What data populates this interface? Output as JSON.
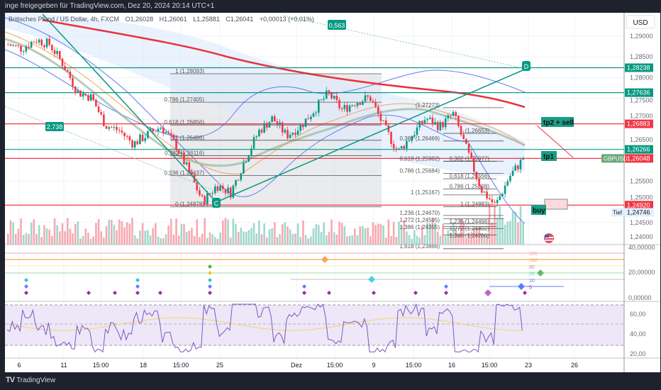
{
  "header": {
    "shared_by": "inge freigegeben für TradingView.com, Dez 20, 2024 20:14 UTC+1"
  },
  "legend": {
    "symbol": "Britisches Pfund / US Dollar, 4h, FXCM",
    "open": "O1,26028",
    "high": "H1,26061",
    "low": "L1,25881",
    "close": "C1,26041",
    "change": "+0,00013 (+0,01%)"
  },
  "price_axis": {
    "currency": "USD",
    "ticks": [
      "1,29000",
      "1,28500",
      "1,28000",
      "1,27500",
      "1,27000",
      "1,26500",
      "1,25500",
      "1,25000",
      "1,24500",
      "1,24000"
    ],
    "tick_values": [
      1.29,
      1.285,
      1.28,
      1.275,
      1.27,
      1.265,
      1.255,
      1.25,
      1.245,
      1.24
    ],
    "tags": [
      {
        "label": "1,28238",
        "value": 1.28238,
        "color": "#089981"
      },
      {
        "label": "1,27636",
        "value": 1.27636,
        "color": "#089981"
      },
      {
        "label": "1,26883",
        "value": 1.26883,
        "color": "#f23645"
      },
      {
        "label": "1,26266",
        "value": 1.26266,
        "color": "#089981"
      },
      {
        "label": "1,26048",
        "value": 1.26048,
        "color": "#f23645"
      },
      {
        "label": "1,24920",
        "value": 1.2492,
        "color": "#f23645"
      }
    ],
    "low_label": "Tief",
    "low_value": "1,24746",
    "symbol_tag": "GBPUSD"
  },
  "indicator_axis": {
    "ticks": [
      "40,00000",
      "20,00000",
      "0,00000"
    ],
    "levels": [
      "320",
      "160",
      "80",
      "20",
      "10",
      "5"
    ]
  },
  "rsi_axis": {
    "ticks": [
      "60,00",
      "40,00",
      "20,00"
    ]
  },
  "time_axis": {
    "labels": [
      "6",
      "11",
      "15:00",
      "18",
      "15:00",
      "25",
      "Dez",
      "15:00",
      "9",
      "15:00",
      "16",
      "15:00",
      "23",
      "26"
    ]
  },
  "annotations": {
    "wave_ratio_1": "2,738",
    "wave_ratio_2": "0,563",
    "point_d": "D",
    "point_c": "C",
    "tp2": "tp2 + sell",
    "tp1": "tp1",
    "buy": "buy"
  },
  "fib_left": [
    {
      "label": "1 (1,28093)",
      "value": 1.28093
    },
    {
      "label": "0,786 (1,27405)",
      "value": 1.27405
    },
    {
      "label": "0,618 (1,26856)",
      "value": 1.26856
    },
    {
      "label": "0,5 (1,26486)",
      "value": 1.26486
    },
    {
      "label": "0,382 (1,26116)",
      "value": 1.26116
    },
    {
      "label": "0,236 (1,25637)",
      "value": 1.25637
    },
    {
      "label": "0 (1,24878)",
      "value": 1.24878
    }
  ],
  "fib_mid": [
    {
      "label": "(1,27273)",
      "value": 1.27273
    },
    {
      "label": "0,382 (1,26469)",
      "value": 1.26469
    },
    {
      "label": "0,618 (1,25982)",
      "value": 1.25982
    },
    {
      "label": "0,786 (1,25684)",
      "value": 1.25684
    },
    {
      "label": "1 (1,25167)",
      "value": 1.25167
    },
    {
      "label": "1,236 (1,24670)",
      "value": 1.2467
    },
    {
      "label": "1,272 (1,24595)",
      "value": 1.24595
    },
    {
      "label": "1,386 (1,24355)",
      "value": 1.24355
    },
    {
      "label": "1,618 (1,23866)",
      "value": 1.23866
    }
  ],
  "fib_right": [
    {
      "label": "(1,26653)",
      "value": 1.26653
    },
    {
      "label": "0,382 (1,25977)",
      "value": 1.25977
    },
    {
      "label": "0,618 (1,25556)",
      "value": 1.25556
    },
    {
      "label": "0,786 (1,25308)",
      "value": 1.25308
    },
    {
      "label": "1 (1,24883)",
      "value": 1.24883
    },
    {
      "label": "1,236 (1,24466)",
      "value": 1.24466
    },
    {
      "label": "1,272 (1,24402)",
      "value": 1.24402
    },
    {
      "label": "1,386 (1,24200)",
      "value": 1.242
    }
  ],
  "price_path": [
    1.288,
    1.287,
    1.2892,
    1.288,
    1.283,
    1.2765,
    1.2752,
    1.2685,
    1.2672,
    1.264,
    1.2662,
    1.2682,
    1.264,
    1.2572,
    1.25,
    1.254,
    1.2522,
    1.26,
    1.267,
    1.2702,
    1.266,
    1.2682,
    1.2722,
    1.2762,
    1.2722,
    1.2742,
    1.2752,
    1.2682,
    1.262,
    1.266,
    1.2702,
    1.2682,
    1.2712,
    1.262,
    1.253,
    1.249,
    1.256,
    1.2604
  ],
  "colors": {
    "up": "#089981",
    "down": "#f23645",
    "teal": "#089981",
    "red": "#f23645",
    "ma": "#e8333f",
    "band": "#5b7ff2"
  },
  "footer": {
    "brand": "TradingView"
  }
}
